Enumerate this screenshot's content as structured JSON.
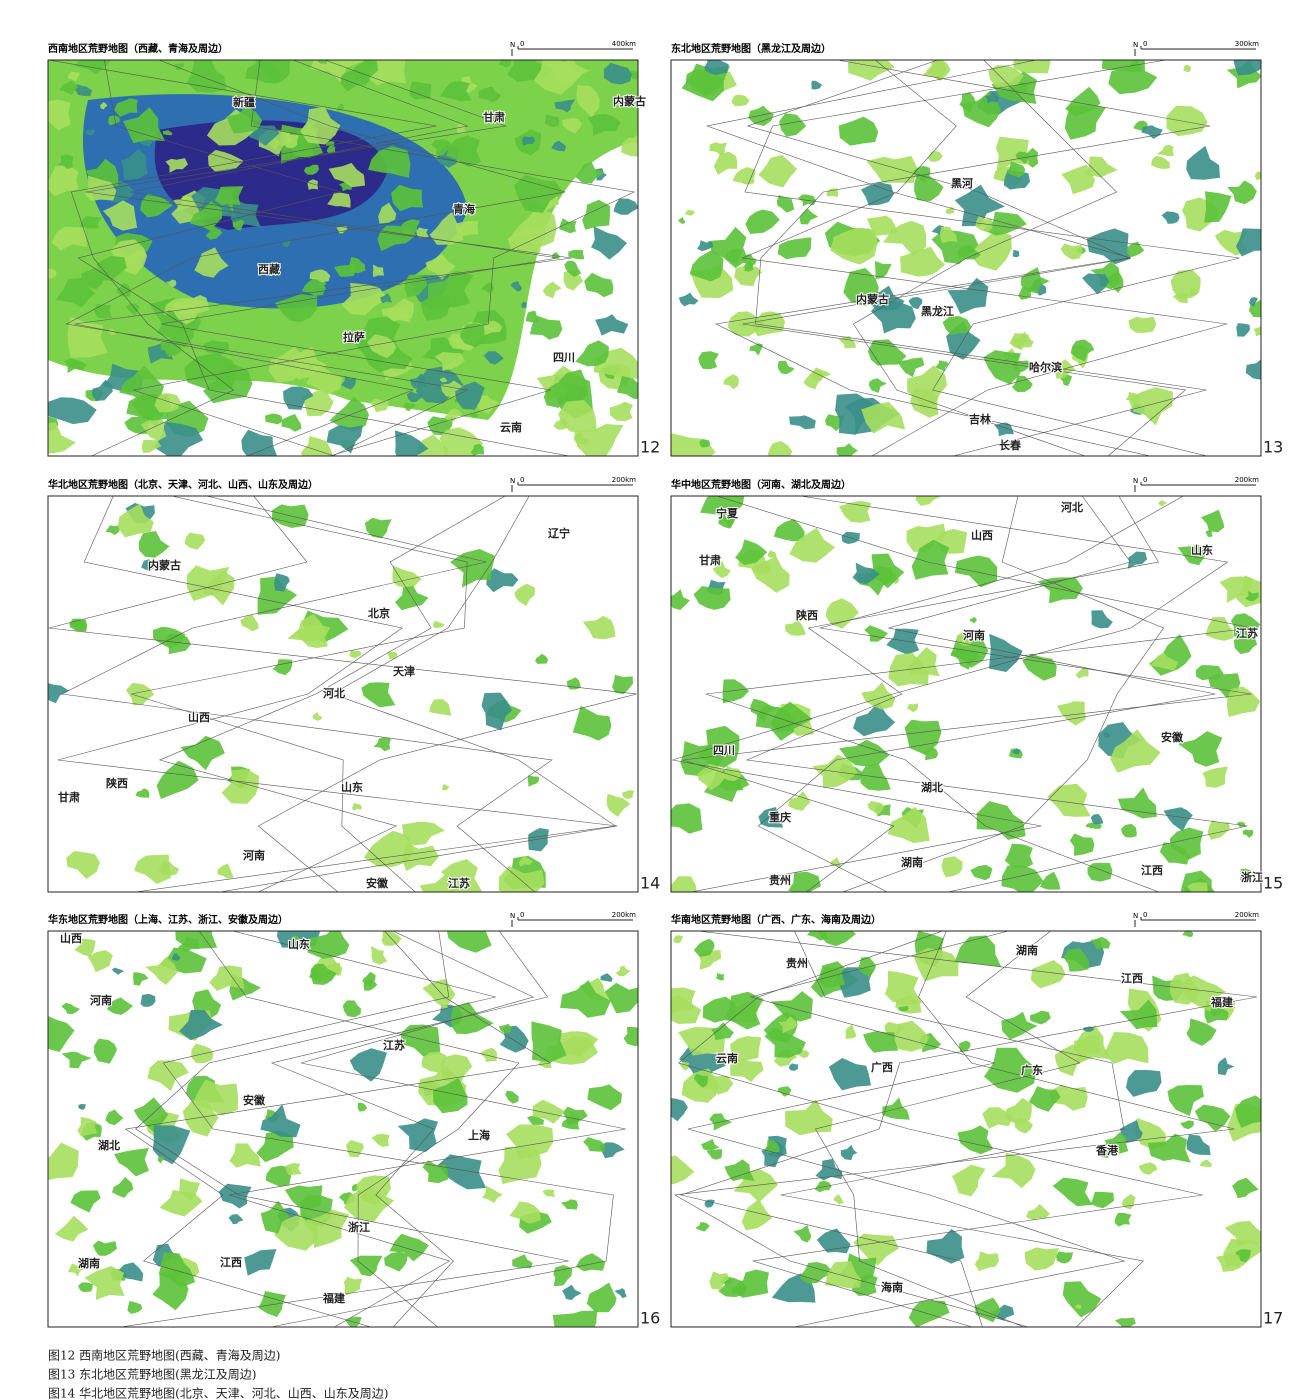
{
  "north": "N",
  "panels": [
    {
      "title": "西南地区荒野地图（西藏、青海及周边）",
      "scale_zero": "0",
      "scale_length": "400km",
      "number": "12",
      "labels": [
        "新疆",
        "西藏",
        "青海",
        "甘肃",
        "内蒙古",
        "四川",
        "云南",
        "拉萨"
      ]
    },
    {
      "title": "东北地区荒野地图（黑龙江及周边）",
      "scale_zero": "0",
      "scale_length": "300km",
      "number": "13",
      "labels": [
        "内蒙古",
        "黑龙江",
        "吉林",
        "哈尔滨",
        "长春",
        "黑河"
      ]
    },
    {
      "title": "华北地区荒野地图（北京、天津、河北、山西、山东及周边）",
      "scale_zero": "0",
      "scale_length": "200km",
      "number": "14",
      "labels": [
        "内蒙古",
        "北京",
        "天津",
        "河北",
        "山西",
        "陕西",
        "甘肃",
        "山东",
        "河南",
        "辽宁",
        "江苏",
        "安徽"
      ]
    },
    {
      "title": "华中地区荒野地图（河南、湖北及周边）",
      "scale_zero": "0",
      "scale_length": "200km",
      "number": "15",
      "labels": [
        "宁夏",
        "甘肃",
        "山西",
        "河北",
        "山东",
        "陕西",
        "河南",
        "江苏",
        "安徽",
        "四川",
        "湖北",
        "重庆",
        "湖南",
        "贵州",
        "江西",
        "浙江"
      ]
    },
    {
      "title": "华东地区荒野地图（上海、江苏、浙江、安徽及周边）",
      "scale_zero": "0",
      "scale_length": "200km",
      "number": "16",
      "labels": [
        "山西",
        "山东",
        "河南",
        "江苏",
        "安徽",
        "上海",
        "湖北",
        "浙江",
        "湖南",
        "江西",
        "福建"
      ]
    },
    {
      "title": "华南地区荒野地图（广西、广东、海南及周边）",
      "scale_zero": "0",
      "scale_length": "200km",
      "number": "17",
      "labels": [
        "贵州",
        "湖南",
        "江西",
        "福建",
        "云南",
        "广西",
        "广东",
        "香港",
        "海南"
      ]
    }
  ],
  "captions": [
    "图12 西南地区荒野地图(西藏、青海及周边)",
    "图13 东北地区荒野地图(黑龙江及周边)",
    "图14 华北地区荒野地图(北京、天津、河北、山西、山东及周边)"
  ]
}
